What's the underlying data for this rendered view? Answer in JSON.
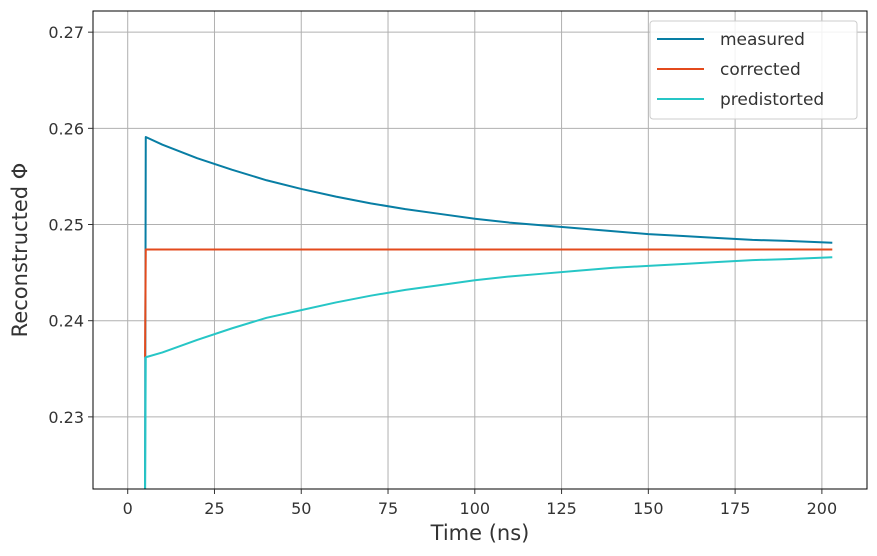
{
  "chart_data": {
    "type": "line",
    "title": "",
    "xlabel": "Time (ns)",
    "ylabel": "Reconstructed Φ",
    "xlim": [
      -10,
      213
    ],
    "ylim": [
      0.2225,
      0.2722
    ],
    "xticks": [
      0,
      25,
      50,
      75,
      100,
      125,
      150,
      175,
      200
    ],
    "xtick_labels": [
      "0",
      "25",
      "50",
      "75",
      "100",
      "125",
      "150",
      "175",
      "200"
    ],
    "yticks": [
      0.23,
      0.24,
      0.25,
      0.26,
      0.27
    ],
    "ytick_labels": [
      "0.23",
      "0.24",
      "0.25",
      "0.26",
      "0.27"
    ],
    "grid": true,
    "legend_position": "top-right",
    "series": [
      {
        "name": "measured",
        "color": "#087ea4",
        "x": [
          5,
          5.2,
          10,
          20,
          30,
          40,
          50,
          60,
          70,
          80,
          90,
          100,
          110,
          120,
          130,
          140,
          150,
          160,
          170,
          180,
          190,
          203
        ],
        "y": [
          0.2225,
          0.2591,
          0.2583,
          0.2569,
          0.2557,
          0.2546,
          0.2537,
          0.2529,
          0.2522,
          0.2516,
          0.2511,
          0.2506,
          0.2502,
          0.2499,
          0.2496,
          0.2493,
          0.249,
          0.2488,
          0.2486,
          0.2484,
          0.2483,
          0.2481
        ]
      },
      {
        "name": "corrected",
        "color": "#e34a1c",
        "x": [
          5,
          5.2,
          203
        ],
        "y": [
          0.2362,
          0.2474,
          0.2474
        ]
      },
      {
        "name": "predistorted",
        "color": "#26c6c6",
        "x": [
          5,
          5.2,
          10,
          20,
          30,
          40,
          50,
          60,
          70,
          80,
          90,
          100,
          110,
          120,
          130,
          140,
          150,
          160,
          170,
          180,
          190,
          203
        ],
        "y": [
          0.2225,
          0.2362,
          0.2367,
          0.238,
          0.2392,
          0.2403,
          0.2411,
          0.2419,
          0.2426,
          0.2432,
          0.2437,
          0.2442,
          0.2446,
          0.2449,
          0.2452,
          0.2455,
          0.2457,
          0.2459,
          0.2461,
          0.2463,
          0.2464,
          0.2466
        ]
      }
    ]
  },
  "colors": {
    "grid": "#b0b0b0",
    "axes_edge": "#000000",
    "legend_edge": "#cccccc"
  }
}
